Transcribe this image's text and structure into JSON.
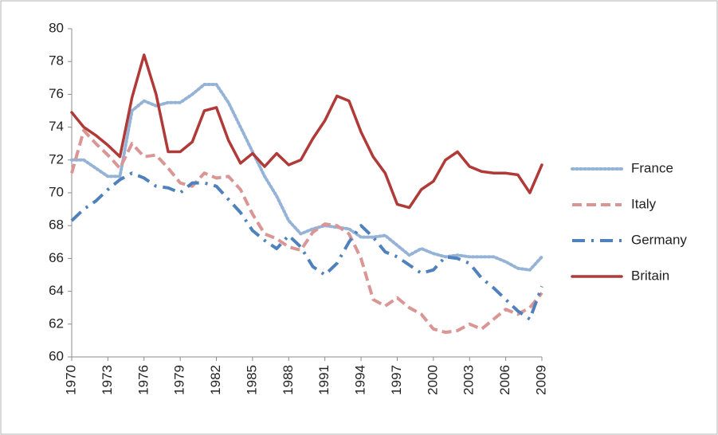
{
  "chart_data": {
    "type": "line",
    "x": [
      1970,
      1971,
      1972,
      1973,
      1974,
      1975,
      1976,
      1977,
      1978,
      1979,
      1980,
      1981,
      1982,
      1983,
      1984,
      1985,
      1986,
      1987,
      1988,
      1989,
      1990,
      1991,
      1992,
      1993,
      1994,
      1995,
      1996,
      1997,
      1998,
      1999,
      2000,
      2001,
      2002,
      2003,
      2004,
      2005,
      2006,
      2007,
      2008,
      2009
    ],
    "xlim": [
      1970,
      2009
    ],
    "xticks": [
      1970,
      1973,
      1976,
      1979,
      1982,
      1985,
      1988,
      1991,
      1994,
      1997,
      2000,
      2003,
      2006,
      2009
    ],
    "ylim": [
      60,
      80
    ],
    "yticks": [
      60,
      62,
      64,
      66,
      68,
      70,
      72,
      74,
      76,
      78,
      80
    ],
    "grid": false,
    "legend": "right",
    "series": [
      {
        "name": "France",
        "color": "#95b3d7",
        "dash": "dotted",
        "values": [
          72,
          72,
          71.5,
          71,
          71,
          75,
          75.6,
          75.3,
          75.5,
          75.5,
          76,
          76.6,
          76.6,
          75.5,
          74,
          72.5,
          71,
          69.8,
          68.3,
          67.5,
          67.8,
          68,
          67.9,
          67.8,
          67.3,
          67.3,
          67.4,
          66.8,
          66.2,
          66.6,
          66.3,
          66.1,
          66.2,
          66.1,
          66.1,
          66.1,
          65.8,
          65.4,
          65.3,
          66.1
        ]
      },
      {
        "name": "Italy",
        "color": "#d99694",
        "dash": "dashed",
        "values": [
          71.2,
          73.8,
          73,
          72.3,
          71.5,
          73,
          72.2,
          72.3,
          71.5,
          70.6,
          70.4,
          71.2,
          70.9,
          71,
          70.2,
          68.7,
          67.5,
          67.2,
          66.7,
          66.5,
          67.6,
          68.1,
          68,
          67.5,
          66,
          63.5,
          63.1,
          63.6,
          63,
          62.6,
          61.7,
          61.5,
          61.6,
          62,
          61.7,
          62.3,
          62.9,
          62.6,
          63,
          63.9
        ]
      },
      {
        "name": "Germany",
        "color": "#4f81bd",
        "dash": "dashdot",
        "values": [
          68.3,
          69,
          69.5,
          70.2,
          70.8,
          71.2,
          70.9,
          70.4,
          70.3,
          70,
          70.6,
          70.6,
          70.4,
          69.6,
          68.8,
          67.7,
          67.1,
          66.6,
          67.4,
          66.7,
          65.5,
          65,
          65.7,
          67,
          68,
          67.3,
          66.4,
          66.1,
          65.6,
          65.1,
          65.3,
          66.1,
          66,
          65.7,
          64.8,
          64.2,
          63.5,
          62.8,
          62.3,
          64.3
        ]
      },
      {
        "name": "Britain",
        "color": "#b03a37",
        "dash": "solid",
        "values": [
          74.9,
          74,
          73.5,
          72.9,
          72.2,
          75.8,
          78.4,
          76,
          72.5,
          72.5,
          73.1,
          75,
          75.2,
          73.2,
          71.8,
          72.4,
          71.6,
          72.4,
          71.7,
          72,
          73.3,
          74.4,
          75.9,
          75.6,
          73.7,
          72.2,
          71.2,
          69.3,
          69.1,
          70.2,
          70.7,
          72,
          72.5,
          71.6,
          71.3,
          71.2,
          71.2,
          71.1,
          70,
          71.7
        ]
      }
    ]
  }
}
